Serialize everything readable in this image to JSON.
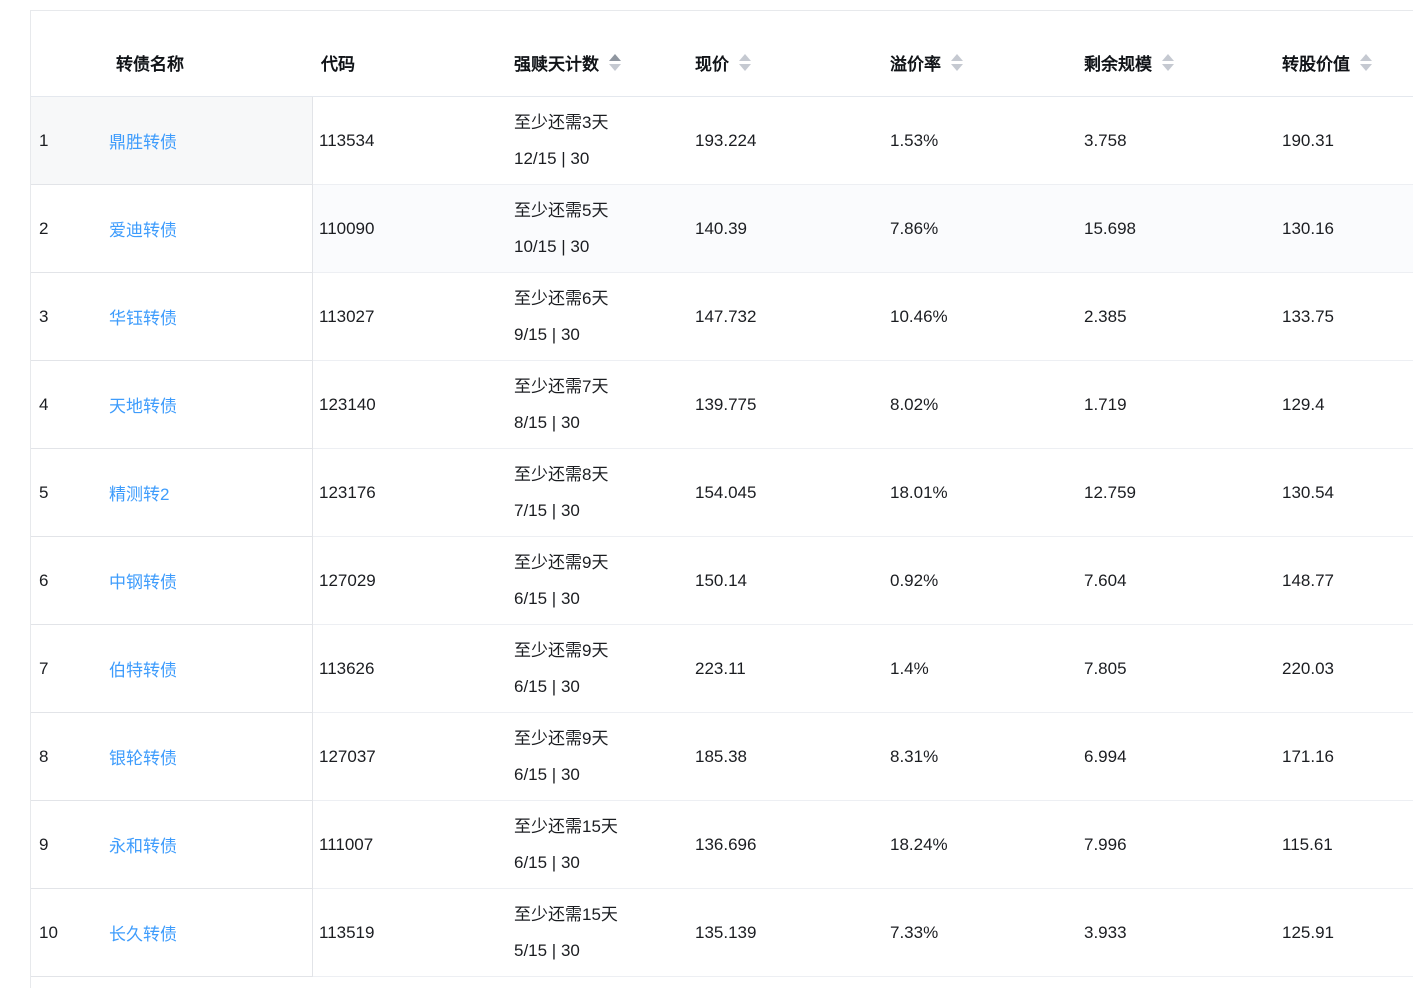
{
  "colors": {
    "link_blue": "#3e9cfc",
    "sort_caret": "#c5c9d1",
    "sort_caret_active": "#8f96a0",
    "header_text": "#111418",
    "body_text": "#1b1d21",
    "row_border_left_pane": "#e2e4e8",
    "row_border_main_pane": "#edeff3"
  },
  "table": {
    "sort_state": {
      "column": "强赎天计数",
      "direction": "asc"
    },
    "columns": [
      {
        "key": "index",
        "label": "",
        "sortable": false
      },
      {
        "key": "name",
        "label": "转债名称",
        "sortable": false
      },
      {
        "key": "code",
        "label": "代码",
        "sortable": false
      },
      {
        "key": "days",
        "label": "强赎天计数",
        "sortable": true
      },
      {
        "key": "price",
        "label": "现价",
        "sortable": true
      },
      {
        "key": "premium",
        "label": "溢价率",
        "sortable": true
      },
      {
        "key": "size",
        "label": "剩余规模",
        "sortable": true
      },
      {
        "key": "value",
        "label": "转股价值",
        "sortable": true
      }
    ],
    "rows": [
      {
        "index": "1",
        "name": "鼎胜转债",
        "code": "113534",
        "days_line1": "至少还需3天",
        "days_line2": "12/15 | 30",
        "price": "193.224",
        "premium": "1.53%",
        "size": "3.758",
        "value": "190.31"
      },
      {
        "index": "2",
        "name": "爱迪转债",
        "code": "110090",
        "days_line1": "至少还需5天",
        "days_line2": "10/15 | 30",
        "price": "140.39",
        "premium": "7.86%",
        "size": "15.698",
        "value": "130.16"
      },
      {
        "index": "3",
        "name": "华钰转债",
        "code": "113027",
        "days_line1": "至少还需6天",
        "days_line2": "9/15 | 30",
        "price": "147.732",
        "premium": "10.46%",
        "size": "2.385",
        "value": "133.75"
      },
      {
        "index": "4",
        "name": "天地转债",
        "code": "123140",
        "days_line1": "至少还需7天",
        "days_line2": "8/15 | 30",
        "price": "139.775",
        "premium": "8.02%",
        "size": "1.719",
        "value": "129.4"
      },
      {
        "index": "5",
        "name": "精测转2",
        "code": "123176",
        "days_line1": "至少还需8天",
        "days_line2": "7/15 | 30",
        "price": "154.045",
        "premium": "18.01%",
        "size": "12.759",
        "value": "130.54"
      },
      {
        "index": "6",
        "name": "中钢转债",
        "code": "127029",
        "days_line1": "至少还需9天",
        "days_line2": "6/15 | 30",
        "price": "150.14",
        "premium": "0.92%",
        "size": "7.604",
        "value": "148.77"
      },
      {
        "index": "7",
        "name": "伯特转债",
        "code": "113626",
        "days_line1": "至少还需9天",
        "days_line2": "6/15 | 30",
        "price": "223.11",
        "premium": "1.4%",
        "size": "7.805",
        "value": "220.03"
      },
      {
        "index": "8",
        "name": "银轮转债",
        "code": "127037",
        "days_line1": "至少还需9天",
        "days_line2": "6/15 | 30",
        "price": "185.38",
        "premium": "8.31%",
        "size": "6.994",
        "value": "171.16"
      },
      {
        "index": "9",
        "name": "永和转债",
        "code": "111007",
        "days_line1": "至少还需15天",
        "days_line2": "6/15 | 30",
        "price": "136.696",
        "premium": "18.24%",
        "size": "7.996",
        "value": "115.61"
      },
      {
        "index": "10",
        "name": "长久转债",
        "code": "113519",
        "days_line1": "至少还需15天",
        "days_line2": "5/15 | 30",
        "price": "135.139",
        "premium": "7.33%",
        "size": "3.933",
        "value": "125.91"
      }
    ]
  }
}
